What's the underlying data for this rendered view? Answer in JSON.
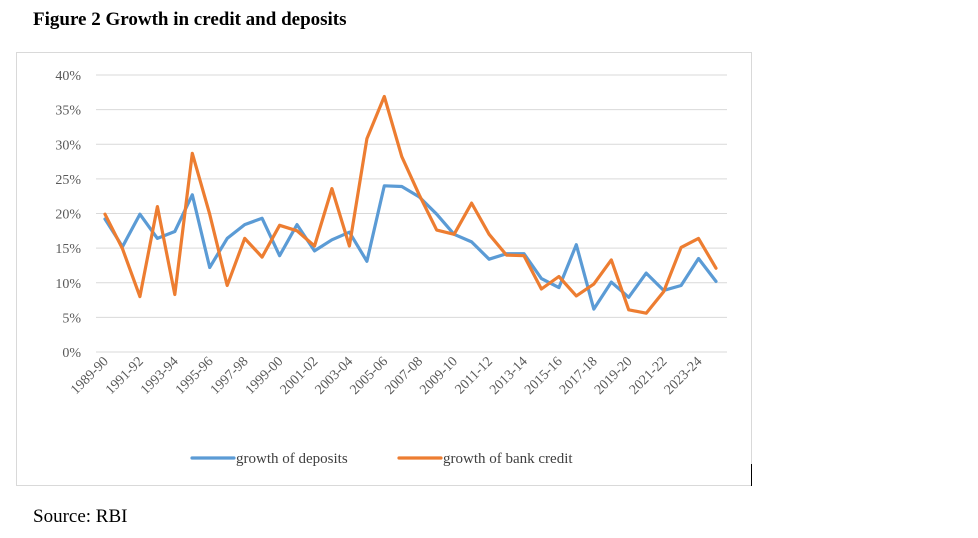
{
  "figure": {
    "title": "Figure 2 Growth in credit and deposits",
    "source": "Source: RBI"
  },
  "chart_data": {
    "type": "line",
    "title": "Figure 2 Growth in credit and deposits",
    "xlabel": "",
    "ylabel": "",
    "ylim": [
      0,
      0.4
    ],
    "y_ticks": [
      0,
      0.05,
      0.1,
      0.15,
      0.2,
      0.25,
      0.3,
      0.35,
      0.4
    ],
    "y_tick_labels": [
      "0%",
      "5%",
      "10%",
      "15%",
      "20%",
      "25%",
      "30%",
      "35%",
      "40%"
    ],
    "categories": [
      "1989-90",
      "1990-91",
      "1991-92",
      "1992-93",
      "1993-94",
      "1994-95",
      "1995-96",
      "1996-97",
      "1997-98",
      "1998-99",
      "1999-00",
      "2000-01",
      "2001-02",
      "2002-03",
      "2003-04",
      "2004-05",
      "2005-06",
      "2006-07",
      "2007-08",
      "2008-09",
      "2009-10",
      "2010-11",
      "2011-12",
      "2012-13",
      "2013-14",
      "2014-15",
      "2015-16",
      "2016-17",
      "2017-18",
      "2018-19",
      "2019-20",
      "2020-21",
      "2021-22",
      "2022-23",
      "2023-24",
      "2024-25"
    ],
    "x_tick_labels": [
      "1989-90",
      "1991-92",
      "1993-94",
      "1995-96",
      "1997-98",
      "1999-00",
      "2001-02",
      "2003-04",
      "2005-06",
      "2007-08",
      "2009-10",
      "2011-12",
      "2013-14",
      "2015-16",
      "2017-18",
      "2019-20",
      "2021-22",
      "2023-24"
    ],
    "grid": true,
    "legend_position": "bottom",
    "series": [
      {
        "name": "growth of deposits",
        "color": "#5b9bd5",
        "values": [
          0.192,
          0.152,
          0.199,
          0.164,
          0.174,
          0.227,
          0.122,
          0.164,
          0.184,
          0.193,
          0.139,
          0.184,
          0.146,
          0.162,
          0.173,
          0.131,
          0.24,
          0.239,
          0.224,
          0.199,
          0.17,
          0.159,
          0.134,
          0.142,
          0.142,
          0.106,
          0.093,
          0.155,
          0.062,
          0.101,
          0.079,
          0.114,
          0.089,
          0.096,
          0.135,
          0.102
        ]
      },
      {
        "name": "growth of bank credit",
        "color": "#ed7d31",
        "values": [
          0.199,
          0.149,
          0.08,
          0.21,
          0.083,
          0.287,
          0.199,
          0.096,
          0.164,
          0.137,
          0.183,
          0.175,
          0.153,
          0.236,
          0.153,
          0.308,
          0.369,
          0.282,
          0.227,
          0.176,
          0.17,
          0.215,
          0.17,
          0.14,
          0.139,
          0.091,
          0.109,
          0.081,
          0.098,
          0.133,
          0.061,
          0.056,
          0.087,
          0.151,
          0.164,
          0.121
        ]
      }
    ]
  }
}
